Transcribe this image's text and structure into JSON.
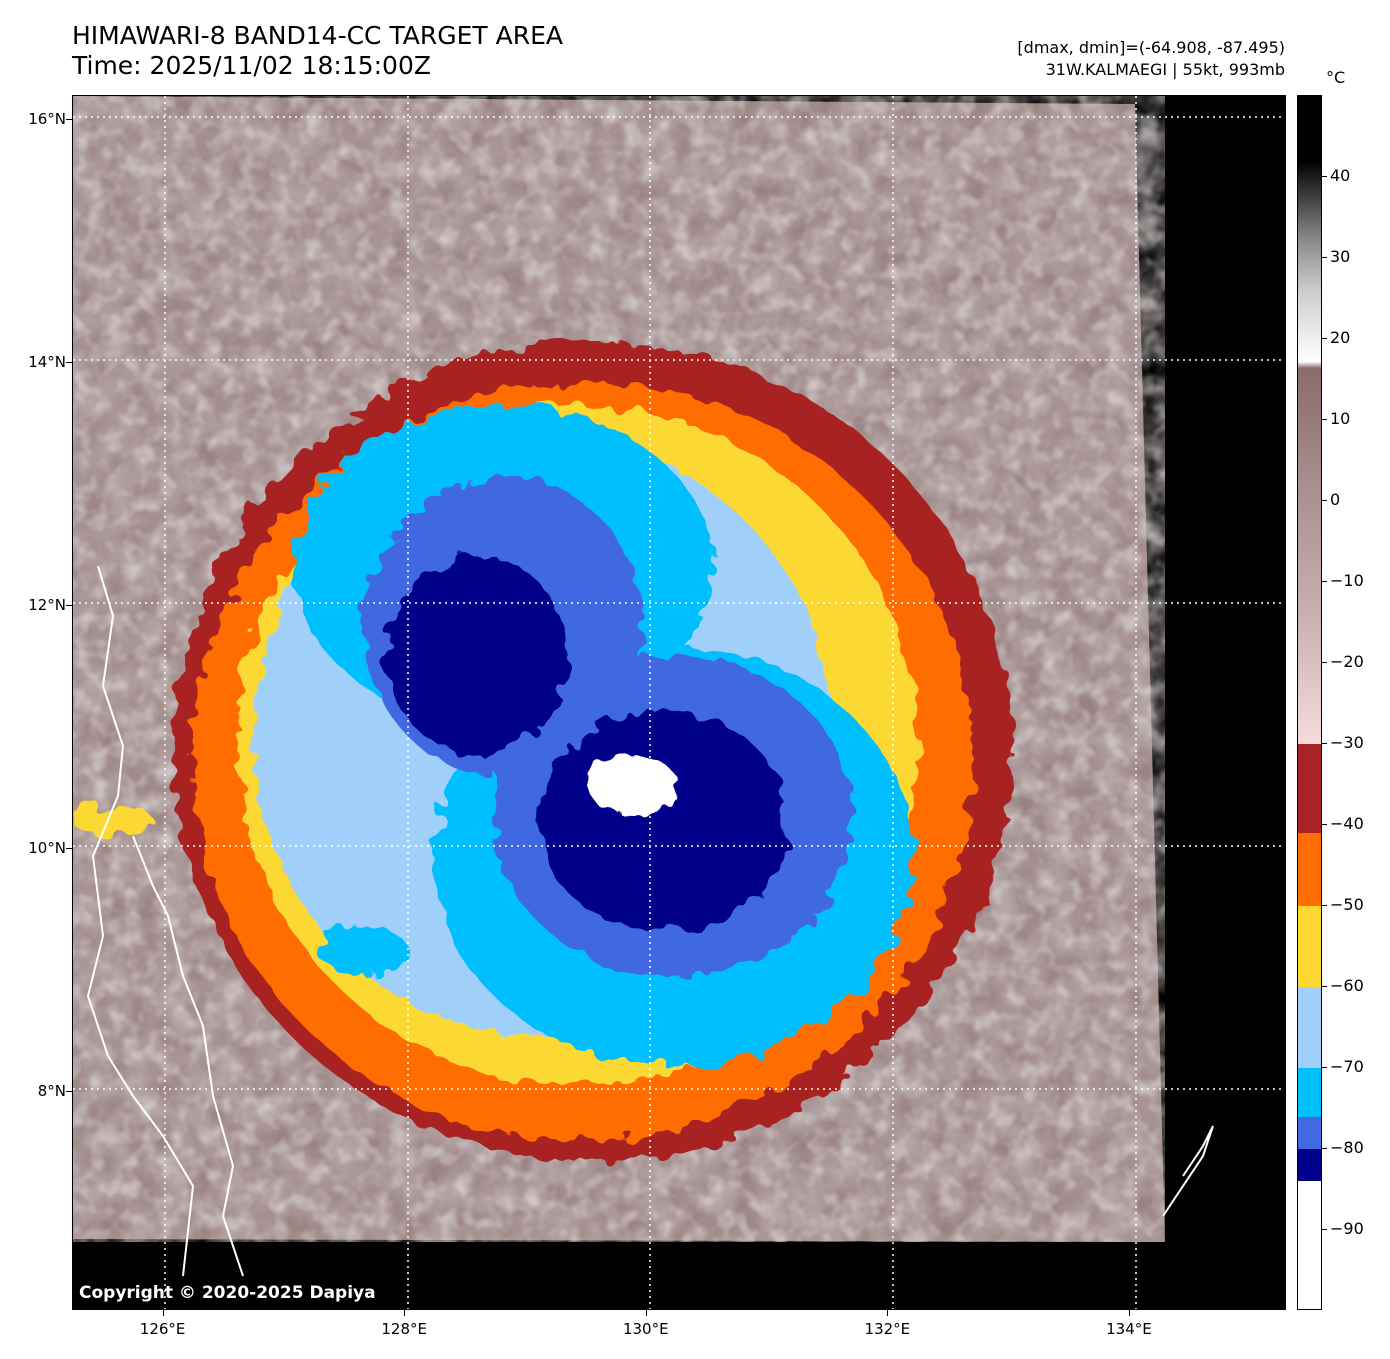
{
  "header": {
    "title_line1": "HIMAWARI-8 BAND14-CC TARGET AREA",
    "title_line2": "Time: 2025/11/02 18:15:00Z",
    "stats_line1": "[dmax, dmin]=(-64.908, -87.495)",
    "stats_line2": "31W.KALMAEGI | 55kt, 993mb"
  },
  "colorbar": {
    "unit": "°C",
    "min": -100,
    "max": 50,
    "ticks": [
      {
        "value": 40,
        "label": "40"
      },
      {
        "value": 30,
        "label": "30"
      },
      {
        "value": 20,
        "label": "20"
      },
      {
        "value": 10,
        "label": "10"
      },
      {
        "value": 0,
        "label": "0"
      },
      {
        "value": -10,
        "label": "−10"
      },
      {
        "value": -20,
        "label": "−20"
      },
      {
        "value": -30,
        "label": "−30"
      },
      {
        "value": -40,
        "label": "−40"
      },
      {
        "value": -50,
        "label": "−50"
      },
      {
        "value": -60,
        "label": "−60"
      },
      {
        "value": -70,
        "label": "−70"
      },
      {
        "value": -80,
        "label": "−80"
      },
      {
        "value": -90,
        "label": "−90"
      }
    ],
    "segments": [
      {
        "from": -100,
        "to": -84,
        "color": "#ffffff"
      },
      {
        "from": -84,
        "to": -80,
        "color": "#00008b"
      },
      {
        "from": -80,
        "to": -76,
        "color": "#4169e1"
      },
      {
        "from": -76,
        "to": -70,
        "color": "#00bfff"
      },
      {
        "from": -70,
        "to": -60,
        "color": "#a0d0fa"
      },
      {
        "from": -60,
        "to": -50,
        "color": "#fcd831"
      },
      {
        "from": -50,
        "to": -41,
        "color": "#ff6c00"
      },
      {
        "from": -41,
        "to": -30,
        "color": "#a82424"
      }
    ],
    "gradient_warm": {
      "from": -30,
      "to": 50
    }
  },
  "map": {
    "lat_ticks": [
      {
        "value": 16,
        "label": "16°N"
      },
      {
        "value": 14,
        "label": "14°N"
      },
      {
        "value": 12,
        "label": "12°N"
      },
      {
        "value": 10,
        "label": "10°N"
      },
      {
        "value": 8,
        "label": "8°N"
      }
    ],
    "lon_ticks": [
      {
        "value": 126,
        "label": "126°E"
      },
      {
        "value": 128,
        "label": "128°E"
      },
      {
        "value": 130,
        "label": "130°E"
      },
      {
        "value": 132,
        "label": "132°E"
      },
      {
        "value": 134,
        "label": "134°E"
      }
    ],
    "lat_range": [
      6.2,
      16.2
    ],
    "lon_range": [
      125.25,
      135.3
    ],
    "copyright": "Copyright © 2020-2025 Dapiya"
  }
}
